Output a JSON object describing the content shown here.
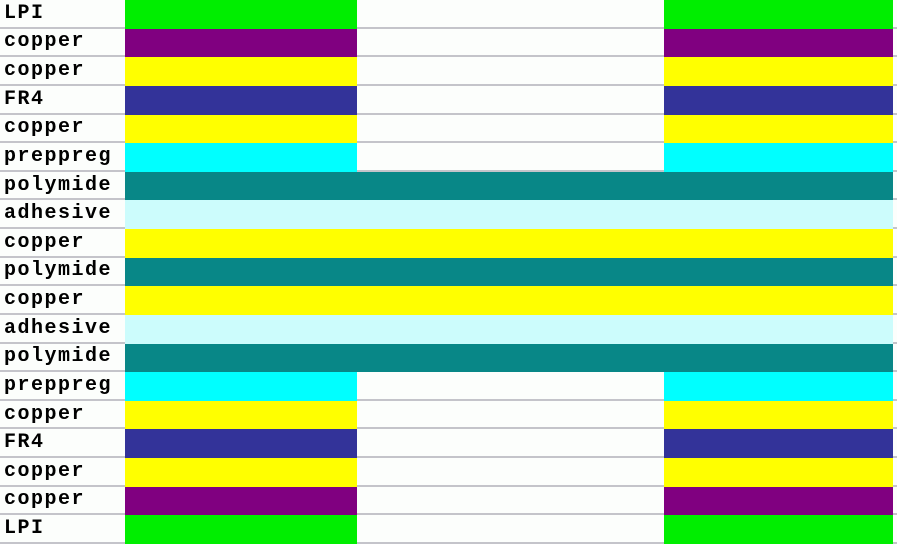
{
  "colors": {
    "background": "#fcfefc",
    "separator_line": "#c4c4ca",
    "text": "#000000"
  },
  "rows": [
    {
      "label": "LPI",
      "color": "#00ee00",
      "extent": "split"
    },
    {
      "label": "copper",
      "color": "#800080",
      "extent": "split"
    },
    {
      "label": "copper",
      "color": "#ffff00",
      "extent": "split"
    },
    {
      "label": "FR4",
      "color": "#333399",
      "extent": "split"
    },
    {
      "label": "copper",
      "color": "#ffff00",
      "extent": "split"
    },
    {
      "label": "preppreg",
      "color": "#00ffff",
      "extent": "split"
    },
    {
      "label": "polymide",
      "color": "#088787",
      "extent": "full"
    },
    {
      "label": "adhesive",
      "color": "#ccfcfc",
      "extent": "full"
    },
    {
      "label": "copper",
      "color": "#ffff00",
      "extent": "full"
    },
    {
      "label": "polymide",
      "color": "#088787",
      "extent": "full"
    },
    {
      "label": "copper",
      "color": "#ffff00",
      "extent": "full"
    },
    {
      "label": "adhesive",
      "color": "#ccfcfc",
      "extent": "full"
    },
    {
      "label": "polymide",
      "color": "#088787",
      "extent": "full"
    },
    {
      "label": "preppreg",
      "color": "#00ffff",
      "extent": "split"
    },
    {
      "label": "copper",
      "color": "#ffff00",
      "extent": "split"
    },
    {
      "label": "FR4",
      "color": "#333399",
      "extent": "split"
    },
    {
      "label": "copper",
      "color": "#ffff00",
      "extent": "split"
    },
    {
      "label": "copper",
      "color": "#800080",
      "extent": "split"
    },
    {
      "label": "LPI",
      "color": "#00ee00",
      "extent": "split"
    }
  ]
}
